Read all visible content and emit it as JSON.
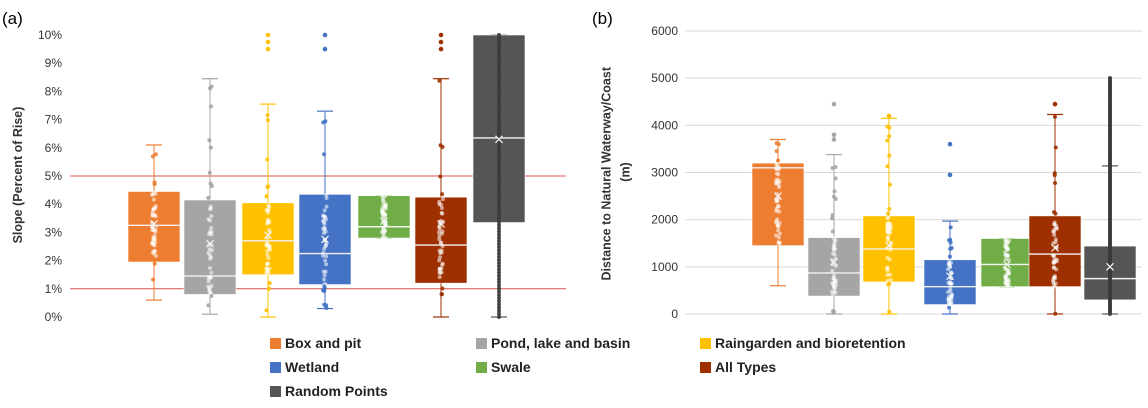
{
  "chart_data": [
    {
      "type": "box",
      "panel_label": "(a)",
      "ylabel": "Slope (Percent of Rise)",
      "ylim": [
        0,
        10
      ],
      "yticks": [
        "0%",
        "1%",
        "2%",
        "3%",
        "4%",
        "5%",
        "6%",
        "7%",
        "8%",
        "9%",
        "10%"
      ],
      "reference_lines": [
        1,
        5
      ],
      "reference_line_color": "#d9534f",
      "grid": false,
      "series": [
        {
          "name": "Box and pit",
          "min": 0.6,
          "q1": 1.95,
          "median": 3.25,
          "mean": 3.3,
          "q3": 4.45,
          "max": 6.1
        },
        {
          "name": "Pond, lake and basin",
          "min": 0.1,
          "q1": 0.8,
          "median": 1.45,
          "mean": 2.6,
          "q3": 4.15,
          "max": 8.45
        },
        {
          "name": "Raingarden and bioretention",
          "min": 0.0,
          "q1": 1.5,
          "median": 2.7,
          "mean": 2.9,
          "q3": 4.05,
          "max": 7.55,
          "outliers": [
            9.5,
            9.75,
            10.0
          ]
        },
        {
          "name": "Wetland",
          "min": 0.3,
          "q1": 1.15,
          "median": 2.25,
          "mean": 2.75,
          "q3": 4.35,
          "max": 7.3,
          "outliers": [
            9.5,
            10.0
          ]
        },
        {
          "name": "Swale",
          "min": 2.8,
          "q1": 2.8,
          "median": 3.2,
          "mean": 3.4,
          "q3": 4.3,
          "max": 4.3
        },
        {
          "name": "All Types",
          "min": 0.0,
          "q1": 1.2,
          "median": 2.55,
          "mean": 3.3,
          "q3": 4.25,
          "max": 8.45,
          "outliers": [
            9.5,
            9.75,
            10.0
          ]
        },
        {
          "name": "Random Points",
          "min": 0.0,
          "q1": 3.35,
          "median": 6.35,
          "mean": 6.3,
          "q3": 10.0,
          "max": 10.0
        }
      ]
    },
    {
      "type": "box",
      "panel_label": "(b)",
      "ylabel": "Distance to Natural Waterway/Coast (m)",
      "ylim": [
        0,
        6000
      ],
      "yticks": [
        "0",
        "1000",
        "2000",
        "3000",
        "4000",
        "5000",
        "6000"
      ],
      "grid": true,
      "series": [
        {
          "name": "Box and pit",
          "min": 600,
          "q1": 1450,
          "median": 3100,
          "mean": 2500,
          "q3": 3200,
          "max": 3700
        },
        {
          "name": "Pond, lake and basin",
          "min": 0,
          "q1": 380,
          "median": 870,
          "mean": 1100,
          "q3": 1620,
          "max": 3380,
          "outliers": [
            3700,
            3800,
            4450
          ]
        },
        {
          "name": "Raingarden and bioretention",
          "min": 0,
          "q1": 680,
          "median": 1380,
          "mean": 1450,
          "q3": 2080,
          "max": 4150,
          "outliers": [
            4200
          ]
        },
        {
          "name": "Wetland",
          "min": 0,
          "q1": 200,
          "median": 580,
          "mean": 800,
          "q3": 1150,
          "max": 1970,
          "outliers": [
            2950,
            3600
          ]
        },
        {
          "name": "Swale",
          "min": 580,
          "q1": 580,
          "median": 1050,
          "mean": 1050,
          "q3": 1600,
          "max": 1600
        },
        {
          "name": "All Types",
          "min": 0,
          "q1": 580,
          "median": 1270,
          "mean": 1400,
          "q3": 2080,
          "max": 4230,
          "outliers": [
            4450
          ]
        },
        {
          "name": "Random Points",
          "min": 0,
          "q1": 300,
          "median": 750,
          "mean": 1000,
          "q3": 1440,
          "max": 3140,
          "outliers_range": [
            3140,
            5000
          ]
        }
      ]
    }
  ],
  "legend": {
    "position": "bottom",
    "items": [
      {
        "label": "Box and pit",
        "color": "#ed7d31"
      },
      {
        "label": "Pond, lake and basin",
        "color": "#a5a5a5"
      },
      {
        "label": "Raingarden and bioretention",
        "color": "#ffc000"
      },
      {
        "label": "Wetland",
        "color": "#4472c4"
      },
      {
        "label": "Swale",
        "color": "#70ad47"
      },
      {
        "label": "All Types",
        "color": "#9e3000"
      },
      {
        "label": "Random Points",
        "color": "#555555"
      }
    ]
  }
}
